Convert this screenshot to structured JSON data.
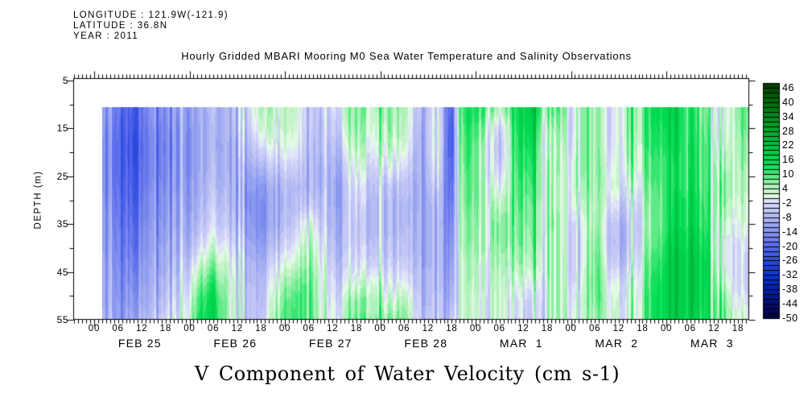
{
  "header": {
    "longitude": "LONGITUDE : 121.9W(-121.9)",
    "latitude": "LATITUDE : 36.8N",
    "year": "YEAR : 2011"
  },
  "title": "Hourly Gridded MBARI Mooring M0 Sea Water Temperature and Salinity Observations",
  "caption": "V Component of Water Velocity (cm s-1)",
  "chart_data": {
    "type": "heatmap",
    "title": "Hourly Gridded MBARI Mooring M0 Sea Water Temperature and Salinity Observations",
    "variable": "V Component of Water Velocity (cm s-1)",
    "units": "cm s-1",
    "ylabel": "DEPTH (m)",
    "depth_axis_ticks": [
      5,
      15,
      25,
      35,
      45,
      55
    ],
    "depth_axis_range": [
      5,
      55
    ],
    "date_labels": [
      "FEB 25",
      "FEB 26",
      "FEB 27",
      "FEB 28",
      "MAR  1",
      "MAR  2",
      "MAR  3"
    ],
    "hour_label_cycle": [
      "00",
      "06",
      "12",
      "18"
    ],
    "hour_labels_count": 28,
    "colorbar": {
      "tick_labels": [
        46,
        40,
        34,
        28,
        22,
        16,
        10,
        4,
        -2,
        -8,
        -14,
        -20,
        -26,
        -32,
        -38,
        -44,
        -50
      ],
      "value_min": -50,
      "value_max": 48,
      "contour_interval": 2,
      "cells": 49,
      "anchors": [
        [
          -50,
          "#000040"
        ],
        [
          -44,
          "#000C6E"
        ],
        [
          -38,
          "#0020A6"
        ],
        [
          -32,
          "#0C32D2"
        ],
        [
          -26,
          "#2C4AE2"
        ],
        [
          -20,
          "#5668EA"
        ],
        [
          -14,
          "#8492EE"
        ],
        [
          -8,
          "#AEB6F2"
        ],
        [
          -2,
          "#D6D8F8"
        ],
        [
          -0.5,
          "#E6E8FB"
        ],
        [
          0.5,
          "#E9FAE9"
        ],
        [
          2,
          "#D4F6D6"
        ],
        [
          6,
          "#A0F0AE"
        ],
        [
          10,
          "#48E87A"
        ],
        [
          14,
          "#00DE54"
        ],
        [
          20,
          "#00C844"
        ],
        [
          26,
          "#00B032"
        ],
        [
          32,
          "#009422"
        ],
        [
          38,
          "#007410"
        ],
        [
          44,
          "#005400"
        ],
        [
          48,
          "#003800"
        ]
      ]
    },
    "grid": {
      "comment_hours": "hours after FEB 25 00:00; data begins ~02:00 FEB 25, ends ~22:00 MAR 3; no data above ~10.5 m",
      "x_hours": [
        2,
        6,
        10,
        14,
        18,
        22,
        26,
        30,
        34,
        38,
        42,
        46,
        50,
        54,
        58,
        62,
        66,
        70,
        74,
        78,
        82,
        86,
        88,
        90,
        91.5,
        94,
        98,
        102,
        106,
        110,
        114,
        118,
        120,
        122,
        126,
        130,
        134,
        138,
        142,
        146,
        150,
        154,
        158,
        162,
        166
      ],
      "depths_m": [
        11,
        15,
        19,
        23,
        27,
        31,
        35,
        39,
        43,
        47,
        51,
        55
      ],
      "values_by_time": [
        [
          -12,
          -13,
          -14,
          -14,
          -14,
          -13,
          -12,
          -12,
          -11,
          -10,
          -10,
          -9
        ],
        [
          -20,
          -21,
          -22,
          -22,
          -21,
          -20,
          -19,
          -18,
          -17,
          -16,
          -15,
          -14
        ],
        [
          -24,
          -25,
          -26,
          -25,
          -24,
          -23,
          -21,
          -20,
          -18,
          -16,
          -14,
          -12
        ],
        [
          -13,
          -14,
          -15,
          -15,
          -14,
          -13,
          -12,
          -11,
          -10,
          -9,
          -8,
          -6
        ],
        [
          -17,
          -18,
          -19,
          -18,
          -17,
          -16,
          -15,
          -13,
          -12,
          -10,
          -8,
          -5
        ],
        [
          -10,
          -11,
          -12,
          -12,
          -11,
          -10,
          -9,
          -8,
          -6,
          -4,
          -2,
          0
        ],
        [
          -9,
          -10,
          -10,
          -10,
          -9,
          -8,
          -6,
          -3,
          2,
          7,
          11,
          13
        ],
        [
          -8,
          -9,
          -9,
          -8,
          -7,
          -5,
          -3,
          1,
          6,
          11,
          15,
          16
        ],
        [
          -8,
          -8,
          -9,
          -9,
          -8,
          -7,
          -5,
          -2,
          1,
          3,
          4,
          4
        ],
        [
          -5,
          -7,
          -9,
          -11,
          -13,
          -13,
          -12,
          -10,
          -8,
          -7,
          -6,
          -5
        ],
        [
          5,
          3,
          -2,
          -8,
          -13,
          -15,
          -15,
          -13,
          -10,
          -8,
          -7,
          -6
        ],
        [
          2,
          1,
          -1,
          -5,
          -9,
          -10,
          -9,
          -6,
          -2,
          2,
          5,
          7
        ],
        [
          5,
          4,
          2,
          -2,
          -6,
          -6,
          -4,
          -1,
          3,
          8,
          11,
          12
        ],
        [
          -5,
          -5,
          -6,
          -7,
          -7,
          -4,
          3,
          6,
          8,
          10,
          11,
          11
        ],
        [
          -7,
          -8,
          -9,
          -10,
          -10,
          -9,
          -8,
          -6,
          -4,
          -2,
          -2,
          -1
        ],
        [
          0,
          -2,
          -5,
          -8,
          -10,
          -10,
          -9,
          -8,
          -6,
          -4,
          -1,
          1
        ],
        [
          8,
          7,
          5,
          2,
          -1,
          -3,
          -4,
          -4,
          -2,
          2,
          7,
          9
        ],
        [
          4,
          3,
          1,
          -2,
          -5,
          -6,
          -6,
          -5,
          -2,
          3,
          6,
          7
        ],
        [
          6,
          5,
          3,
          -1,
          -6,
          -8,
          -8,
          -7,
          -5,
          -2,
          2,
          6
        ],
        [
          5,
          4,
          2,
          -2,
          -6,
          -7,
          -7,
          -6,
          -4,
          0,
          5,
          8
        ],
        [
          -7,
          -8,
          -9,
          -9,
          -9,
          -9,
          -8,
          -8,
          -7,
          -6,
          -5,
          -4
        ],
        [
          0,
          2,
          2,
          0,
          -3,
          -6,
          -7,
          -7,
          -7,
          -6,
          -5,
          -4
        ],
        [
          -6,
          -6,
          -7,
          -7,
          -8,
          -8,
          -8,
          -7,
          -7,
          -6,
          -5,
          -4
        ],
        [
          -27,
          -28,
          -28,
          -26,
          -24,
          -22,
          -20,
          -18,
          -16,
          -14,
          -12,
          -8
        ],
        [
          8,
          7,
          6,
          5,
          4,
          4,
          3,
          3,
          2,
          2,
          2,
          3
        ],
        [
          14,
          13,
          12,
          11,
          10,
          9,
          8,
          7,
          6,
          5,
          4,
          4
        ],
        [
          10,
          6,
          3,
          3,
          4,
          4,
          4,
          3,
          2,
          1,
          0,
          0
        ],
        [
          2,
          -6,
          -8,
          -6,
          -2,
          3,
          6,
          6,
          4,
          3,
          2,
          2
        ],
        [
          12,
          11,
          10,
          9,
          8,
          7,
          6,
          5,
          3,
          0,
          -3,
          -4
        ],
        [
          20,
          18,
          15,
          13,
          11,
          9,
          8,
          7,
          5,
          1,
          -3,
          -4
        ],
        [
          6,
          2,
          1,
          3,
          4,
          4,
          4,
          3,
          3,
          2,
          2,
          2
        ],
        [
          8,
          6,
          4,
          3,
          2,
          2,
          3,
          3,
          4,
          4,
          4,
          4
        ],
        [
          -4,
          -4,
          -3,
          0,
          1,
          0,
          -3,
          -4,
          -4,
          -3,
          -1,
          0
        ],
        [
          3,
          3,
          3,
          3,
          2,
          -1,
          -5,
          -6,
          -6,
          -4,
          -2,
          -2
        ],
        [
          6,
          6,
          6,
          6,
          5,
          5,
          6,
          8,
          9,
          9,
          8,
          6
        ],
        [
          -5,
          -5,
          -4,
          -2,
          0,
          -3,
          -7,
          -8,
          -6,
          -2,
          0,
          1
        ],
        [
          8,
          8,
          7,
          5,
          2,
          -2,
          -5,
          -5,
          -3,
          1,
          2,
          3
        ],
        [
          10,
          10,
          9,
          8,
          6,
          4,
          3,
          4,
          6,
          7,
          8,
          8
        ],
        [
          16,
          15,
          13,
          12,
          11,
          10,
          10,
          11,
          13,
          15,
          16,
          16
        ],
        [
          18,
          17,
          16,
          15,
          15,
          16,
          17,
          19,
          21,
          21,
          20,
          20
        ],
        [
          12,
          12,
          13,
          13,
          14,
          15,
          16,
          18,
          19,
          19,
          19,
          18
        ],
        [
          6,
          7,
          8,
          8,
          8,
          9,
          10,
          12,
          14,
          14,
          13,
          12
        ],
        [
          -4,
          -3,
          -1,
          2,
          4,
          3,
          0,
          -2,
          -2,
          1,
          5,
          6
        ],
        [
          8,
          7,
          6,
          5,
          4,
          3,
          1,
          -1,
          -2,
          -2,
          0,
          3
        ],
        [
          11,
          9,
          8,
          6,
          4,
          3,
          2,
          -2,
          -5,
          -6,
          -2,
          1
        ]
      ]
    }
  }
}
